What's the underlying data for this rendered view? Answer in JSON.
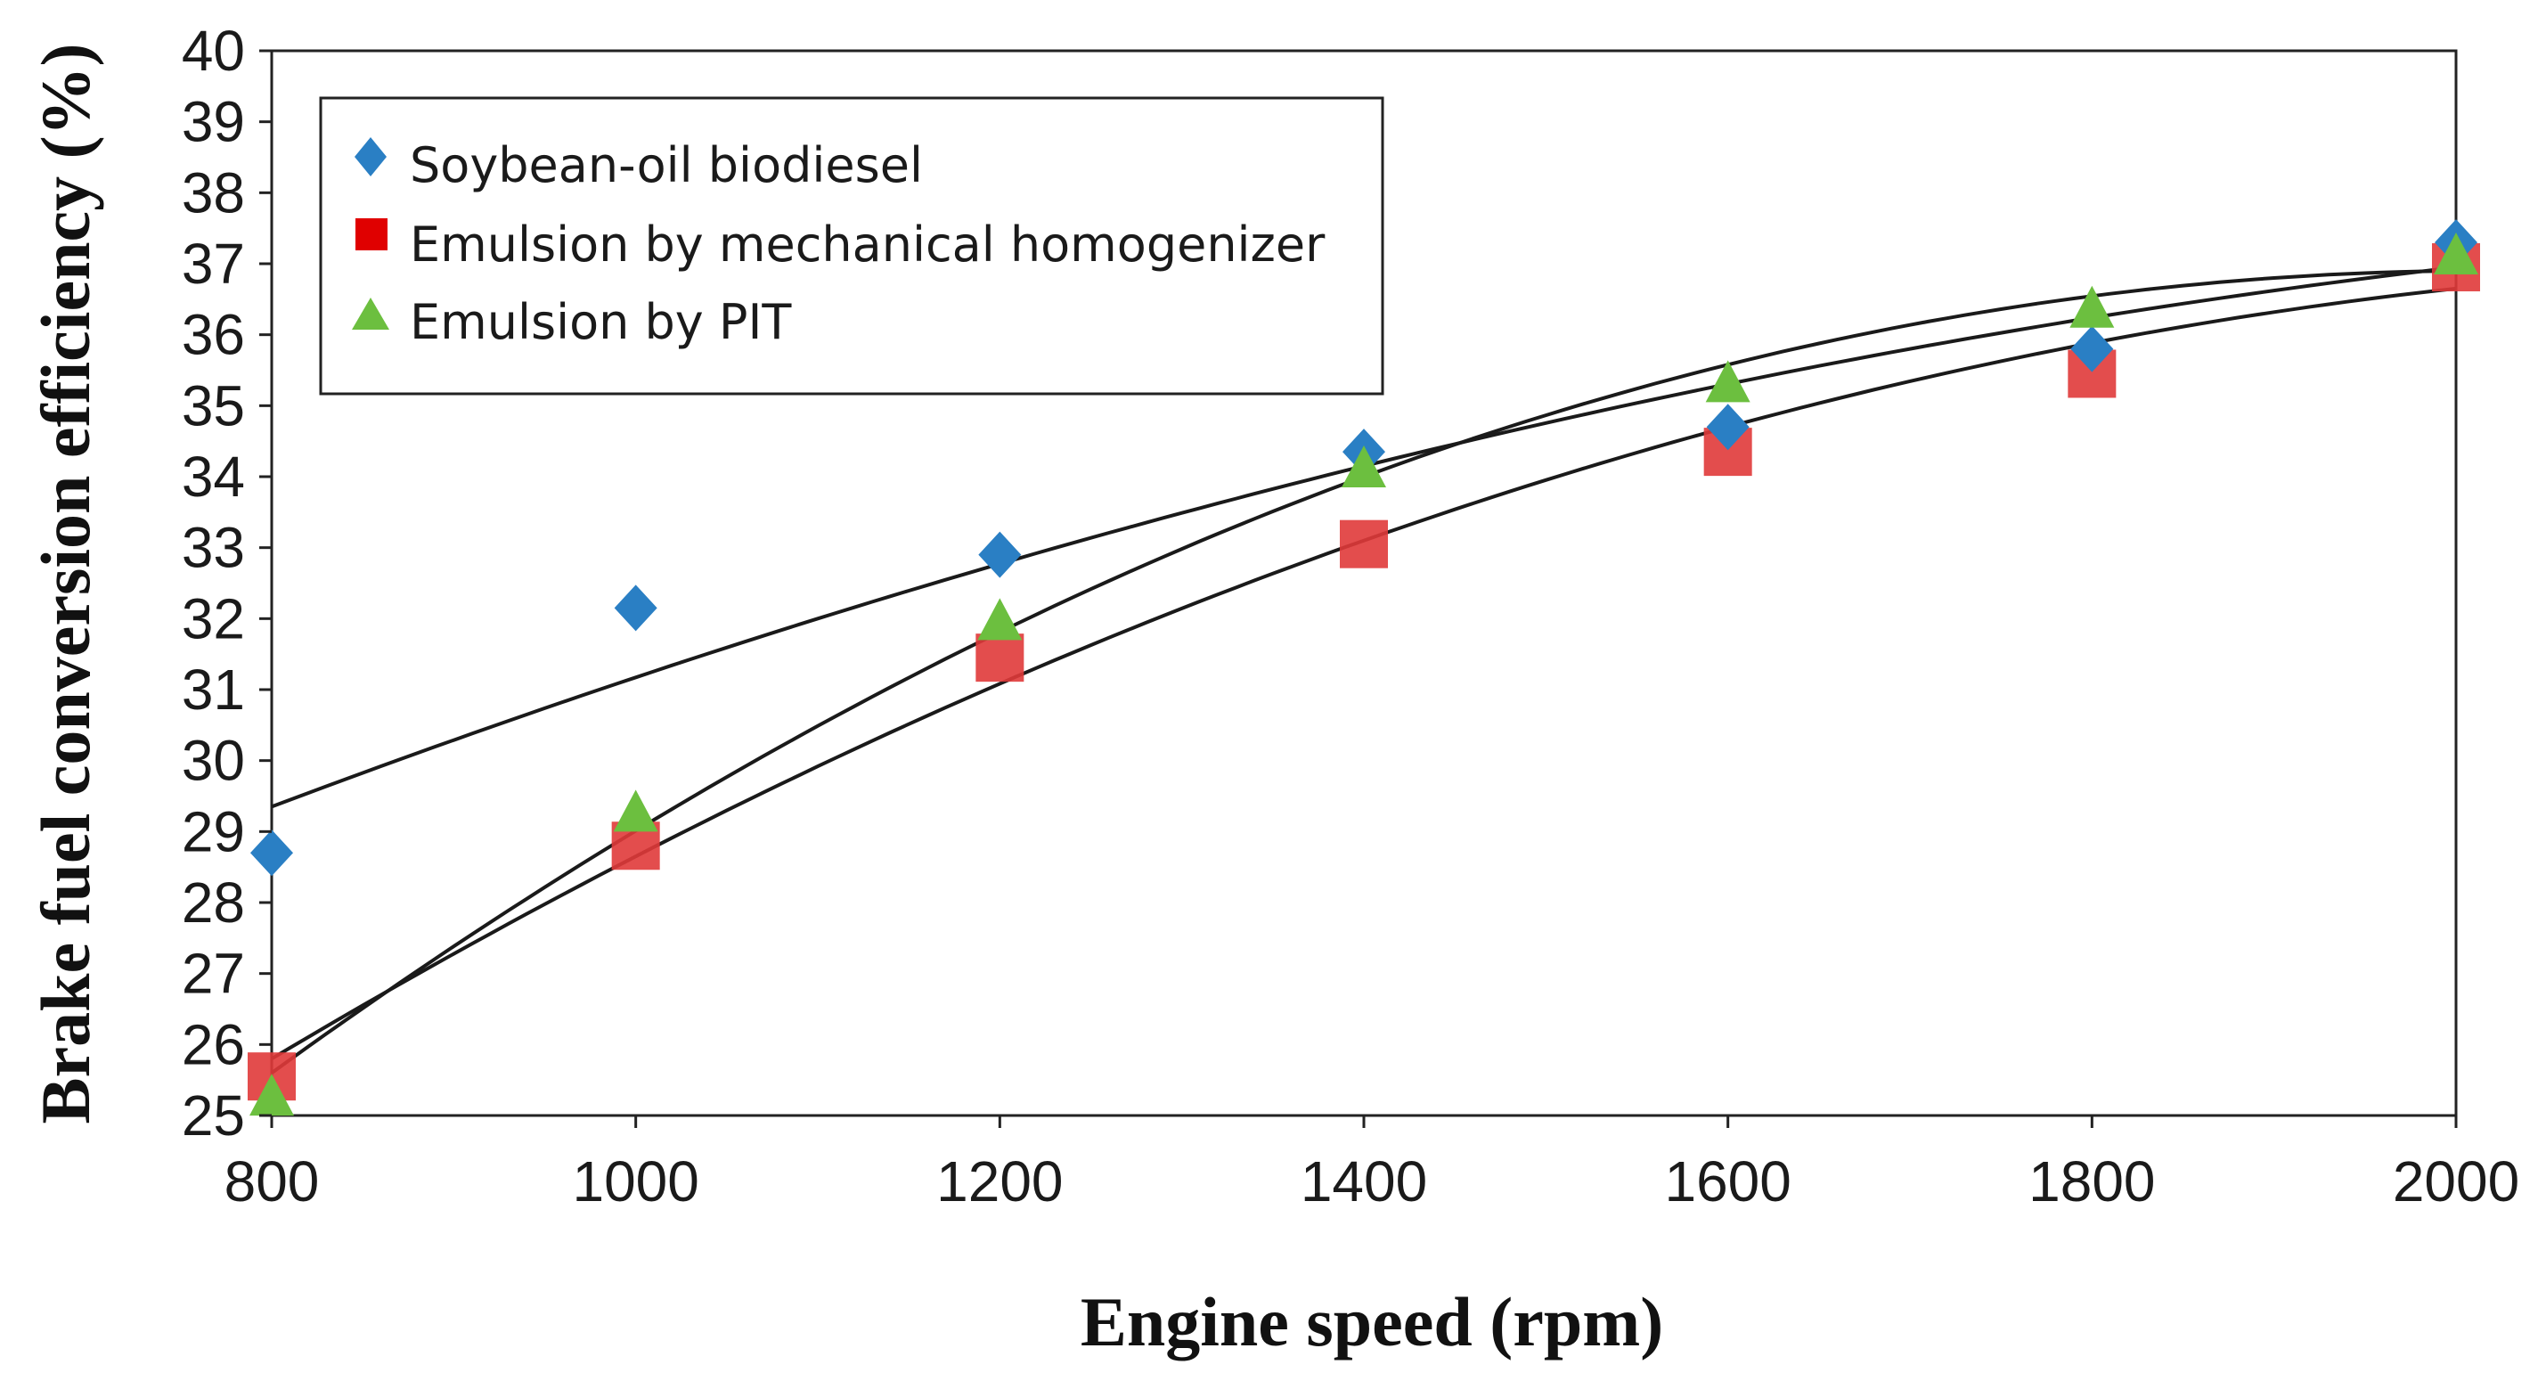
{
  "chart_data": {
    "type": "scatter",
    "title": "",
    "xlabel": "Engine speed (rpm)",
    "ylabel": "Brake fuel conversion efficiency (%)",
    "xlim": [
      800,
      2000
    ],
    "ylim": [
      25,
      40
    ],
    "x_ticks": [
      "800",
      "1000",
      "1200",
      "1400",
      "1600",
      "1800",
      "2000"
    ],
    "y_ticks": [
      "25",
      "26",
      "27",
      "28",
      "29",
      "30",
      "31",
      "32",
      "33",
      "34",
      "35",
      "36",
      "37",
      "38",
      "39",
      "40"
    ],
    "grid": false,
    "legend_position": "top-left",
    "series": [
      {
        "name": "Soybean-oil biodiesel",
        "marker": "diamond",
        "color": "#2a7fc4",
        "x": [
          800,
          1000,
          1200,
          1400,
          1600,
          1800,
          2000
        ],
        "values": [
          28.7,
          32.15,
          32.9,
          34.35,
          34.7,
          35.8,
          37.3
        ],
        "fit": {
          "type": "polynomial-2",
          "points": [
            [
              800,
              29.35
            ],
            [
              1400,
              34.15
            ],
            [
              2000,
              36.95
            ]
          ]
        }
      },
      {
        "name": "Emulsion by mechanical homogenizer",
        "marker": "square",
        "color": "#e03a3a",
        "x": [
          800,
          1000,
          1200,
          1400,
          1600,
          1800,
          2000
        ],
        "values": [
          25.55,
          28.8,
          31.45,
          33.05,
          34.35,
          35.45,
          36.95
        ],
        "fit": {
          "type": "polynomial-2",
          "points": [
            [
              800,
              25.8
            ],
            [
              1400,
              33.1
            ],
            [
              2000,
              36.65
            ]
          ]
        }
      },
      {
        "name": "Emulsion by PIT",
        "marker": "triangle",
        "color": "#6cbf3f",
        "x": [
          800,
          1000,
          1200,
          1400,
          1600,
          1800,
          2000
        ],
        "values": [
          25.25,
          29.25,
          31.95,
          34.1,
          35.3,
          36.35,
          37.1
        ],
        "fit": {
          "type": "polynomial-2",
          "points": [
            [
              800,
              25.6
            ],
            [
              1400,
              34.0
            ],
            [
              2000,
              36.9
            ]
          ]
        }
      }
    ]
  }
}
